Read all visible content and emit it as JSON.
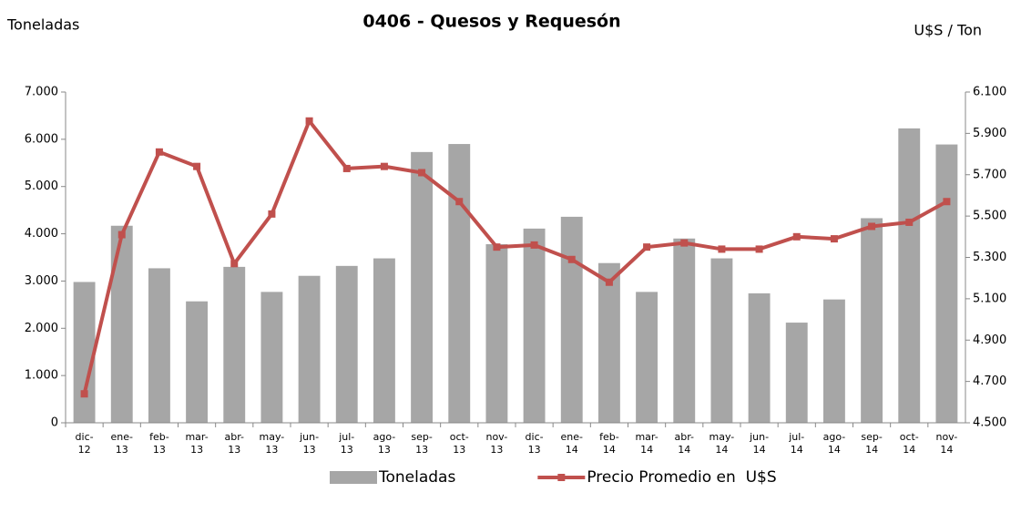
{
  "chart_data": {
    "type": "bar_line",
    "title": "0406 - Quesos y Requesón",
    "y_label": "Toneladas",
    "y2_label": "U$S / Ton",
    "categories": [
      "dic-12",
      "ene-13",
      "feb-13",
      "mar-13",
      "abr-13",
      "may-13",
      "jun-13",
      "jul-13",
      "ago-13",
      "sep-13",
      "oct-13",
      "nov-13",
      "dic-13",
      "ene-14",
      "feb-14",
      "mar-14",
      "abr-14",
      "may-14",
      "jun-14",
      "jul-14",
      "ago-14",
      "sep-14",
      "oct-14",
      "nov-14"
    ],
    "series": [
      {
        "name": "Toneladas",
        "type": "bar",
        "color": "#a6a6a6",
        "values": [
          2980,
          4170,
          3270,
          2570,
          3300,
          2770,
          3110,
          3320,
          3480,
          5730,
          5900,
          3780,
          4110,
          4360,
          3380,
          2770,
          3900,
          3480,
          2740,
          2120,
          2610,
          4330,
          6230,
          5890
        ]
      },
      {
        "name": "Precio Promedio en  U$S",
        "type": "line",
        "axis": "y2",
        "color": "#c0504d",
        "values": [
          4640,
          5410,
          5810,
          5740,
          5270,
          5510,
          5960,
          5730,
          5740,
          5710,
          5570,
          5350,
          5360,
          5290,
          5180,
          5350,
          5370,
          5340,
          5340,
          5400,
          5390,
          5450,
          5470,
          5570
        ]
      }
    ],
    "ylim": [
      0,
      7000
    ],
    "yticks": [
      0,
      {
        "value": 1000,
        "label": "1.000"
      },
      {
        "value": 2000,
        "label": "2.000"
      },
      {
        "value": 3000,
        "label": "3.000"
      },
      {
        "value": 4000,
        "label": "4.000"
      },
      {
        "value": 5000,
        "label": "5.000"
      },
      {
        "value": 6000,
        "label": "6.000"
      },
      {
        "value": 7000,
        "label": "7.000"
      }
    ],
    "y2lim": [
      4500,
      6100
    ],
    "y2ticks": [
      {
        "value": 4500,
        "label": "4.500"
      },
      {
        "value": 4700,
        "label": "4.700"
      },
      {
        "value": 4900,
        "label": "4.900"
      },
      {
        "value": 5100,
        "label": "5.100"
      },
      {
        "value": 5300,
        "label": "5.300"
      },
      {
        "value": 5500,
        "label": "5.500"
      },
      {
        "value": 5700,
        "label": "5.700"
      },
      {
        "value": 5900,
        "label": "5.900"
      },
      {
        "value": 6100,
        "label": "6.100"
      }
    ],
    "legend": "bottom"
  }
}
